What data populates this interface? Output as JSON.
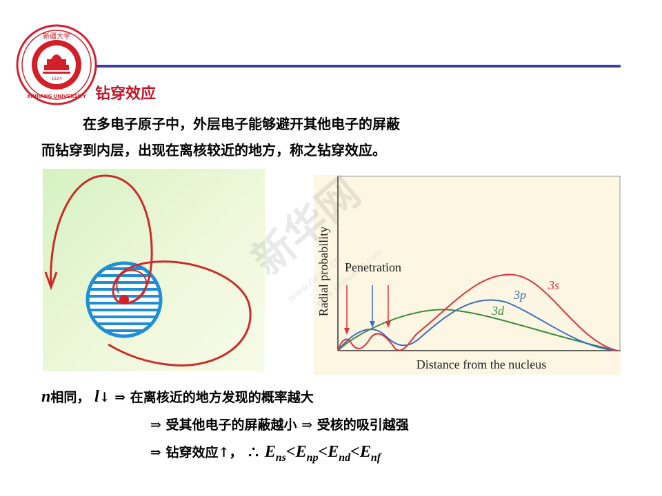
{
  "logo": {
    "year": "1924",
    "top_text": "新疆大学",
    "bottom_text": "XINJIANG UNIVERSITY"
  },
  "slide": {
    "title": "钻穿效应",
    "para_line1": "在多电子原子中，外层电子能够避开其他电子的屏蔽",
    "para_line2": "而钻穿到内层，出现在离核较近的地方，称之钻穿效应。"
  },
  "plot": {
    "ylabel": "Radial probability",
    "xlabel": "Distance from the nucleus",
    "penetration_label": "Penetration",
    "series": [
      {
        "name": "3s",
        "color": "#e0303a"
      },
      {
        "name": "3p",
        "color": "#3a6ec0"
      },
      {
        "name": "3d",
        "color": "#3a8a3a"
      }
    ]
  },
  "conclusions": {
    "l1_n": "n",
    "l1_same": "相同，",
    "l1_l": "l",
    "l1_down": "↓",
    "l1_implies": "⇒",
    "l1_text": "在离核近的地方发现的概率越大",
    "l2_implies": "⇒",
    "l2_text": "受其他电子的屏蔽越小",
    "l2_implies2": "⇒",
    "l2_text2": "受核的吸引越强",
    "l3_implies": "⇒",
    "l3_text": "钻穿效应",
    "l3_up": "↑",
    "l3_comma": "，",
    "l3_therefore": "∴",
    "E": "E",
    "lt": "<",
    "s1": "ns",
    "s2": "np",
    "s3": "nd",
    "s4": "nf"
  },
  "watermark": {
    "url1": "www.news.cn",
    "url2": "www.xinhuanet.com",
    "brand": "新华网"
  },
  "colors": {
    "title": "#c0182a",
    "rule": "#3a3aa8",
    "orbit": "#cc2a2a",
    "core": "#1e8fd6"
  }
}
